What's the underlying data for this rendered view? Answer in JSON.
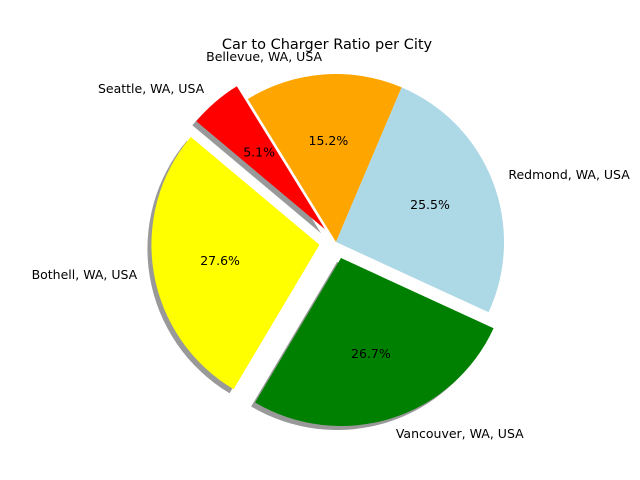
{
  "chart_data": {
    "type": "pie",
    "title": "Car to Charger Ratio per City",
    "slices": [
      {
        "label": "Seattle, WA, USA",
        "value": 5.1,
        "pct_label": "5.1%",
        "color": "#ff0000",
        "exploded": true
      },
      {
        "label": "Bellevue, WA, USA",
        "value": 15.2,
        "pct_label": "15.2%",
        "color": "#ffa500",
        "exploded": false
      },
      {
        "label": "Redmond, WA, USA",
        "value": 25.5,
        "pct_label": "25.5%",
        "color": "#add8e6",
        "exploded": false
      },
      {
        "label": "Vancouver, WA, USA",
        "value": 26.7,
        "pct_label": "26.7%",
        "color": "#008000",
        "exploded": true
      },
      {
        "label": "Bothell, WA, USA",
        "value": 27.6,
        "pct_label": "27.6%",
        "color": "#ffff00",
        "exploded": true
      }
    ],
    "start_angle": 140,
    "direction": "clockwise",
    "shadow": true,
    "legend": "none"
  }
}
